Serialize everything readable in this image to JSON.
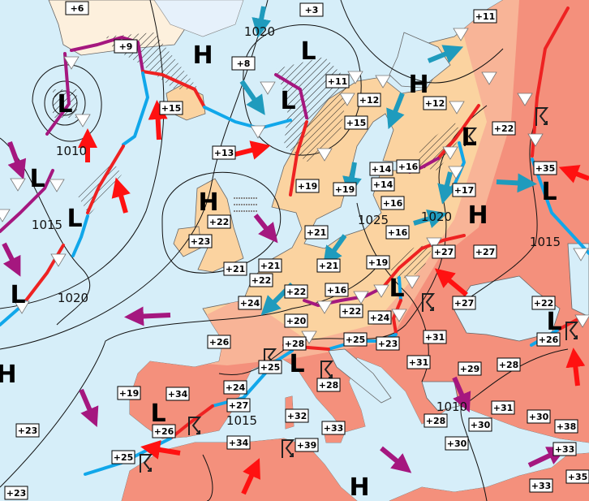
{
  "colors": {
    "ocean": "#d6eef9",
    "land_mild": "#fbd3a0",
    "land_warm": "#f8b497",
    "land_hot": "#f4907c",
    "ice": "#e6f1fb",
    "warm_front": "#ee2222",
    "cold_front": "#11a7ea",
    "occluded_front": "#a5177f",
    "warm_air_arrow": "#ff1111",
    "cool_air_arrow": "#1f9bbd",
    "moist_air_arrow": "#a5177f"
  },
  "temperatures": [
    "+6",
    "+3",
    "+11",
    "+9",
    "+8",
    "+11",
    "+12",
    "+12",
    "+15",
    "+15",
    "+22",
    "+13",
    "+16",
    "+14",
    "+14",
    "+35",
    "+19",
    "+19",
    "+17",
    "+16",
    "+22",
    "+16",
    "+21",
    "+23",
    "+27",
    "+27",
    "+21",
    "+21",
    "+19",
    "+21",
    "+22",
    "+22",
    "+16",
    "+24",
    "+27",
    "+22",
    "+22",
    "+24",
    "+20",
    "+26",
    "+31",
    "+26",
    "+28",
    "+25",
    "+23",
    "+31",
    "+25",
    "+29",
    "+28",
    "+28",
    "+19",
    "+34",
    "+24",
    "+27",
    "+31",
    "+30",
    "+38",
    "+26",
    "+32",
    "+33",
    "+28",
    "+30",
    "+23",
    "+34",
    "+39",
    "+30",
    "+25",
    "+33",
    "+35",
    "+33",
    "+23"
  ],
  "isobar_labels": [
    "1020",
    "1010",
    "1015",
    "1020",
    "1025",
    "1020",
    "1015",
    "1015",
    "1010"
  ],
  "pressure_centers": [
    "H",
    "L",
    "L",
    "L",
    "H",
    "L",
    "L",
    "L",
    "H",
    "H",
    "L",
    "L",
    "L",
    "H",
    "L",
    "L",
    "L",
    "H"
  ],
  "icons": {
    "shower": "shower-triangle-icon",
    "thunderstorm": "thunderstorm-icon",
    "fog": "fog-icon"
  }
}
